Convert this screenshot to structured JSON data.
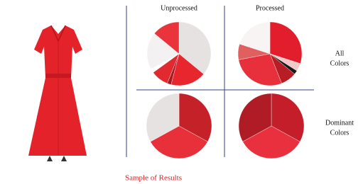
{
  "figure": {
    "columns": [
      "Unprocessed",
      "Processed"
    ],
    "rows": [
      [
        "All",
        "Colors"
      ],
      [
        "Dominant",
        "Colors"
      ]
    ],
    "caption": "Sample of Results"
  },
  "chart_data": [
    {
      "type": "pie",
      "values": [
        36,
        18,
        2,
        9,
        2,
        19,
        14
      ],
      "colors": [
        "#e6e2e2",
        "#e8262e",
        "#a8181e",
        "#e02a30",
        "#ffffff",
        "#f3f1f1",
        "#e8343a"
      ]
    },
    {
      "type": "pie",
      "values": [
        30,
        4,
        2,
        8,
        28,
        8,
        20
      ],
      "colors": [
        "#e31e2c",
        "#f2c8c8",
        "#1a1a1a",
        "#b81c25",
        "#e8303c",
        "#e06060",
        "#f8f4f4"
      ]
    },
    {
      "type": "pie",
      "values": [
        33,
        34,
        33
      ],
      "colors": [
        "#c42228",
        "#e8303a",
        "#e6e2e2"
      ]
    },
    {
      "type": "pie",
      "values": [
        33,
        34,
        33
      ],
      "colors": [
        "#c41e2a",
        "#e8303e",
        "#b01c26"
      ]
    }
  ]
}
